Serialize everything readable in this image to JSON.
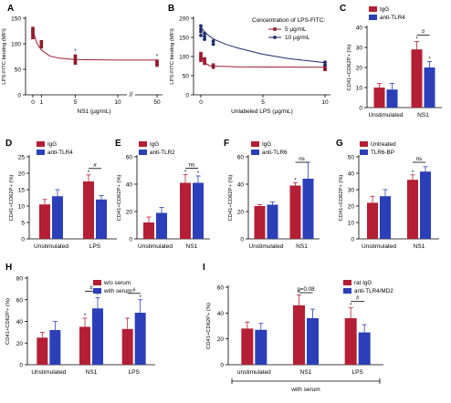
{
  "colors": {
    "dark_red": "#9e1b32",
    "navy": "#1f2a6b",
    "red_bar": "#b41f35",
    "blue_bar": "#2b3fb8",
    "axis": "#000000",
    "point_red": "#8f1c2b"
  },
  "chart_data": [
    {
      "panel": "A",
      "type": "scatter",
      "panel_label": "A",
      "xlabel": "NS1 (µg/mL)",
      "ylabel": "LPS-FITC binding (MFI)",
      "xticks": [
        "0",
        "1",
        "5",
        "10",
        "50"
      ],
      "xlim_note": "broken axis between 10 and 50",
      "yticks": [
        0,
        50,
        100,
        150
      ],
      "ylim": [
        0,
        150
      ],
      "points": [
        {
          "x": 0,
          "y": 112
        },
        {
          "x": 0,
          "y": 118
        },
        {
          "x": 0,
          "y": 122
        },
        {
          "x": 0,
          "y": 126
        },
        {
          "x": 0,
          "y": 130
        },
        {
          "x": 1,
          "y": 94
        },
        {
          "x": 1,
          "y": 100
        },
        {
          "x": 1,
          "y": 104
        },
        {
          "x": 5,
          "y": 62
        },
        {
          "x": 5,
          "y": 67
        },
        {
          "x": 5,
          "y": 72
        },
        {
          "x": 5,
          "y": 76
        },
        {
          "x": 50,
          "y": 58
        },
        {
          "x": 50,
          "y": 62
        },
        {
          "x": 50,
          "y": 66
        }
      ],
      "fit_curve": [
        [
          0,
          126
        ],
        [
          0.5,
          100
        ],
        [
          1,
          88
        ],
        [
          2,
          76
        ],
        [
          3,
          72
        ],
        [
          5,
          69
        ],
        [
          10,
          68
        ],
        [
          50,
          68
        ]
      ],
      "star_labels": [
        {
          "x": 5,
          "y": 82,
          "text": "*"
        },
        {
          "x": 50,
          "y": 72,
          "text": "*"
        }
      ]
    },
    {
      "panel": "B",
      "type": "scatter",
      "panel_label": "B",
      "xlabel": "Unlabeled LPS (µg/mL)",
      "ylabel": "LPS-FITC binding (MFI)",
      "xticks": [
        "0",
        "5",
        "10"
      ],
      "xlim": [
        0,
        10
      ],
      "yticks": [
        0,
        50,
        100,
        150,
        200
      ],
      "ylim": [
        0,
        200
      ],
      "legend_title": "Concentration of LPS-FITC:",
      "series": [
        {
          "name": "5 µg/mL",
          "color_key": "dark_red",
          "points": [
            [
              0,
              90
            ],
            [
              0,
              96
            ],
            [
              0,
              102
            ],
            [
              0,
              108
            ],
            [
              0.3,
              82
            ],
            [
              0.3,
              88
            ],
            [
              0.3,
              94
            ],
            [
              1,
              72
            ],
            [
              1,
              78
            ],
            [
              10,
              66
            ],
            [
              10,
              72
            ]
          ],
          "fit_curve": [
            [
              0,
              102
            ],
            [
              0.3,
              84
            ],
            [
              0.7,
              76
            ],
            [
              1,
              75
            ],
            [
              3,
              73
            ],
            [
              10,
              72
            ]
          ]
        },
        {
          "name": "10 µg/mL",
          "color_key": "navy",
          "points": [
            [
              0,
              155
            ],
            [
              0,
              165
            ],
            [
              0,
              172
            ],
            [
              0,
              180
            ],
            [
              0.3,
              145
            ],
            [
              0.3,
              152
            ],
            [
              0.3,
              160
            ],
            [
              1,
              132
            ],
            [
              1,
              140
            ],
            [
              10,
              78
            ],
            [
              10,
              85
            ]
          ],
          "fit_curve": [
            [
              0,
              175
            ],
            [
              0.5,
              158
            ],
            [
              1,
              146
            ],
            [
              2,
              132
            ],
            [
              3,
              122
            ],
            [
              5,
              106
            ],
            [
              7,
              95
            ],
            [
              10,
              84
            ]
          ]
        }
      ],
      "star_labels": [
        {
          "x": 1,
          "y": 66,
          "text": "*"
        },
        {
          "x": 10,
          "y": 60,
          "text": "*"
        }
      ]
    },
    {
      "panel": "C",
      "type": "bar",
      "panel_label": "C",
      "ylabel": "CD41+CD62P+ (%)",
      "ylim": [
        0,
        40
      ],
      "yticks": [
        0,
        10,
        20,
        30,
        40
      ],
      "categories": [
        "Unstimulated",
        "NS1"
      ],
      "series": [
        {
          "name": "IgG",
          "color_key": "red_bar",
          "values": [
            10,
            29
          ],
          "errors": [
            2,
            4
          ]
        },
        {
          "name": "anti-TLR4",
          "color_key": "blue_bar",
          "values": [
            9,
            20
          ],
          "errors": [
            3,
            3
          ]
        }
      ],
      "bar_stars": [
        [
          1,
          0
        ],
        [
          1,
          1
        ]
      ],
      "brackets": [
        {
          "category": 1,
          "text": "#"
        }
      ]
    },
    {
      "panel": "D",
      "type": "bar",
      "panel_label": "D",
      "ylabel": "CD41+CD62P+ (%)",
      "ylim": [
        0,
        25
      ],
      "yticks": [
        0,
        5,
        10,
        15,
        20,
        25
      ],
      "categories": [
        "Unstimulated",
        "LPS"
      ],
      "series": [
        {
          "name": "IgG",
          "color_key": "red_bar",
          "values": [
            10.5,
            17.5
          ],
          "errors": [
            1.5,
            2
          ]
        },
        {
          "name": "anti-TLR4",
          "color_key": "blue_bar",
          "values": [
            13,
            12
          ],
          "errors": [
            2,
            1.2
          ]
        }
      ],
      "bar_stars": [
        [
          1,
          0
        ]
      ],
      "brackets": [
        {
          "category": 1,
          "text": "#"
        }
      ]
    },
    {
      "panel": "E",
      "type": "bar",
      "panel_label": "E",
      "ylabel": "CD41+CD62P+ (%)",
      "ylim": [
        0,
        60
      ],
      "yticks": [
        0,
        20,
        40,
        60
      ],
      "categories": [
        "Unstimulated",
        "NS1"
      ],
      "series": [
        {
          "name": "IgG",
          "color_key": "red_bar",
          "values": [
            12,
            41
          ],
          "errors": [
            4,
            6
          ]
        },
        {
          "name": "anti-TLR2",
          "color_key": "blue_bar",
          "values": [
            19,
            41
          ],
          "errors": [
            4,
            5
          ]
        }
      ],
      "bar_stars": [
        [
          1,
          0
        ],
        [
          1,
          1
        ]
      ],
      "brackets": [
        {
          "category": 1,
          "text": "ns"
        }
      ]
    },
    {
      "panel": "F",
      "type": "bar",
      "panel_label": "F",
      "ylabel": "CD41+CD62P+ (%)",
      "ylim": [
        0,
        60
      ],
      "yticks": [
        0,
        20,
        40,
        60
      ],
      "categories": [
        "Unstimulated",
        "NS1"
      ],
      "series": [
        {
          "name": "IgG",
          "color_key": "red_bar",
          "values": [
            24,
            39
          ],
          "errors": [
            1,
            2
          ]
        },
        {
          "name": "anti-TLR6",
          "color_key": "blue_bar",
          "values": [
            25,
            44
          ],
          "errors": [
            2,
            12
          ]
        }
      ],
      "bar_stars": [
        [
          1,
          0
        ]
      ],
      "brackets": [
        {
          "category": 1,
          "text": "ns"
        }
      ]
    },
    {
      "panel": "G",
      "type": "bar",
      "panel_label": "G",
      "ylabel": "CD41+CD62P+ (%)",
      "ylim": [
        0,
        50
      ],
      "yticks": [
        0,
        10,
        20,
        30,
        40,
        50
      ],
      "categories": [
        "Unstimulated",
        "NS1"
      ],
      "series": [
        {
          "name": "Untreated",
          "color_key": "red_bar",
          "values": [
            22,
            36
          ],
          "errors": [
            4,
            3
          ]
        },
        {
          "name": "TLR6-BP",
          "color_key": "blue_bar",
          "values": [
            26,
            41
          ],
          "errors": [
            4,
            3
          ]
        }
      ],
      "bar_stars": [
        [
          1,
          0
        ]
      ],
      "brackets": [
        {
          "category": 1,
          "text": "ns"
        }
      ]
    },
    {
      "panel": "H",
      "type": "bar",
      "panel_label": "H",
      "ylabel": "CD41+CD62P+ (%)",
      "ylim": [
        0,
        80
      ],
      "yticks": [
        0,
        20,
        40,
        60,
        80
      ],
      "categories": [
        "Unstimulated",
        "NS1",
        "LPS"
      ],
      "series": [
        {
          "name": "w/o serum",
          "color_key": "red_bar",
          "values": [
            25,
            35,
            33
          ],
          "errors": [
            5,
            8,
            10
          ]
        },
        {
          "name": "with serum",
          "color_key": "blue_bar",
          "values": [
            32,
            52,
            48
          ],
          "errors": [
            8,
            10,
            12
          ]
        }
      ],
      "bar_stars": [
        [
          1,
          0
        ],
        [
          1,
          1
        ],
        [
          2,
          1
        ]
      ],
      "brackets": [
        {
          "category": 1,
          "text": "#"
        },
        {
          "category": 2,
          "text": "#"
        }
      ]
    },
    {
      "panel": "I",
      "type": "bar",
      "panel_label": "I",
      "ylabel": "CD41+CD62P+ (%)",
      "ylim": [
        0,
        60
      ],
      "yticks": [
        0,
        20,
        40,
        60
      ],
      "categories": [
        "unstimulated",
        "NS1",
        "LPS"
      ],
      "series": [
        {
          "name": "rat IgG",
          "color_key": "red_bar",
          "values": [
            28,
            46,
            36
          ],
          "errors": [
            5,
            8,
            8
          ]
        },
        {
          "name": "anti-TLR4/MD2",
          "color_key": "blue_bar",
          "values": [
            27,
            36,
            25
          ],
          "errors": [
            5,
            7,
            6
          ]
        }
      ],
      "bar_stars": [
        [
          1,
          0
        ],
        [
          2,
          0
        ]
      ],
      "brackets": [
        {
          "category": 1,
          "text": "p=0.08"
        },
        {
          "category": 2,
          "text": "#"
        }
      ],
      "footer_label": "with serum"
    }
  ]
}
